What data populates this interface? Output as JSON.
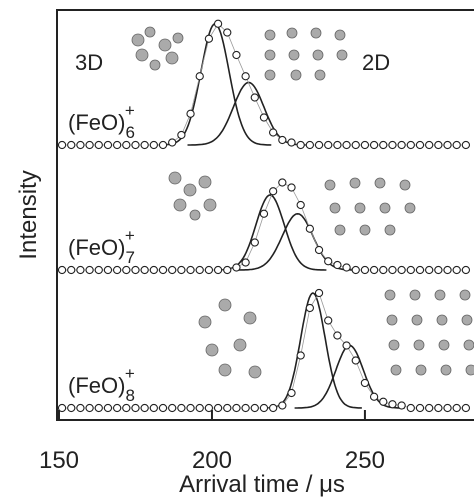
{
  "chart_data": {
    "type": "line",
    "xlabel": "Arrival time / μs",
    "ylabel": "Intensity",
    "xlim": [
      150,
      285
    ],
    "xticks": [
      150,
      200,
      250
    ],
    "ylim": [
      0,
      1
    ],
    "annotations": [
      "3D",
      "2D"
    ],
    "x": [
      151,
      154,
      157,
      160,
      163,
      166,
      169,
      172,
      175,
      178,
      181,
      184,
      187,
      190,
      193,
      196,
      199,
      202,
      205,
      208,
      211,
      214,
      217,
      220,
      223,
      226,
      229,
      232,
      235,
      238,
      241,
      244,
      247,
      250,
      253,
      256,
      259,
      262,
      265,
      268,
      271,
      274,
      277,
      280,
      283
    ],
    "panels": [
      {
        "label": {
          "base": "(FeO)",
          "sub": "6",
          "sup": "+"
        },
        "values": [
          0,
          0,
          0,
          0,
          0,
          0,
          0,
          0,
          0,
          0,
          0,
          0,
          0.02,
          0.08,
          0.25,
          0.55,
          0.85,
          0.97,
          0.9,
          0.72,
          0.55,
          0.38,
          0.22,
          0.1,
          0.04,
          0.02,
          0,
          0,
          0,
          0,
          0,
          0,
          0,
          0,
          0,
          0,
          0,
          0,
          0,
          0,
          0,
          0,
          0,
          0,
          0
        ],
        "fits": [
          {
            "center": 201,
            "sigma": 4.6,
            "height": 0.97
          },
          {
            "center": 212,
            "sigma": 5,
            "height": 0.5
          }
        ]
      },
      {
        "label": {
          "base": "(FeO)",
          "sub": "7",
          "sup": "+"
        },
        "values": [
          0,
          0,
          0,
          0,
          0,
          0,
          0,
          0,
          0,
          0,
          0,
          0,
          0,
          0,
          0,
          0,
          0,
          0,
          0,
          0.02,
          0.06,
          0.22,
          0.45,
          0.63,
          0.7,
          0.66,
          0.52,
          0.33,
          0.16,
          0.07,
          0.04,
          0.02,
          0,
          0,
          0,
          0,
          0,
          0,
          0,
          0,
          0,
          0,
          0,
          0,
          0
        ],
        "fits": [
          {
            "center": 219,
            "sigma": 4.6,
            "height": 0.6
          },
          {
            "center": 228,
            "sigma": 5,
            "height": 0.45
          }
        ]
      },
      {
        "label": {
          "base": "(FeO)",
          "sub": "8",
          "sup": "+"
        },
        "values": [
          0,
          0,
          0,
          0,
          0,
          0,
          0,
          0,
          0,
          0,
          0,
          0,
          0,
          0,
          0,
          0,
          0,
          0,
          0,
          0,
          0,
          0,
          0,
          0,
          0.02,
          0.12,
          0.42,
          0.8,
          0.92,
          0.7,
          0.58,
          0.5,
          0.38,
          0.2,
          0.09,
          0.05,
          0.03,
          0.02,
          0,
          0,
          0,
          0,
          0,
          0,
          0
        ],
        "fits": [
          {
            "center": 233,
            "sigma": 4,
            "height": 0.92
          },
          {
            "center": 245,
            "sigma": 4.5,
            "height": 0.5
          }
        ]
      }
    ]
  }
}
